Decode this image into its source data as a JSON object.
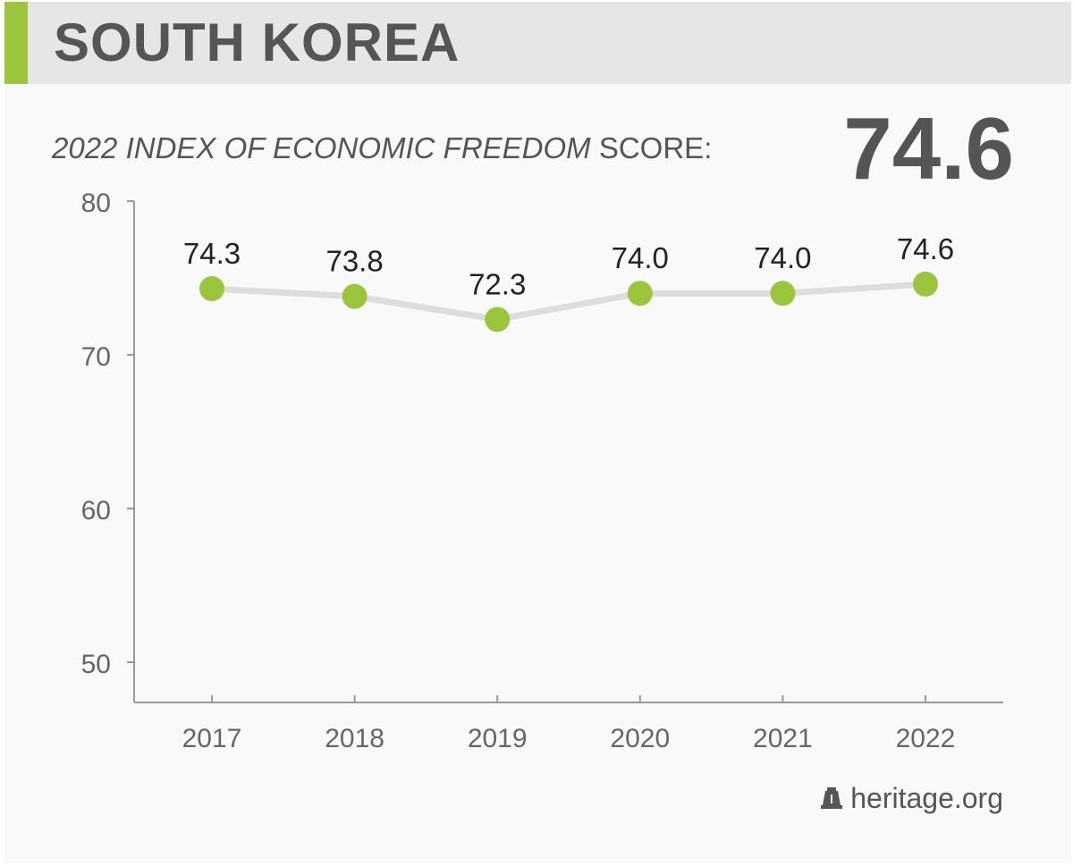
{
  "header": {
    "country": "SOUTH KOREA",
    "accent_color": "#9bc53d"
  },
  "subtitle": {
    "italic_part": "2022 INDEX OF ECONOMIC FREEDOM",
    "plain_part": " SCORE:"
  },
  "score": "74.6",
  "source": {
    "text": "heritage.org",
    "logo_icon": "liberty-bell-icon"
  },
  "chart_data": {
    "type": "line",
    "x": [
      "2017",
      "2018",
      "2019",
      "2020",
      "2021",
      "2022"
    ],
    "values": [
      74.3,
      73.8,
      72.3,
      74.0,
      74.0,
      74.6
    ],
    "data_labels": [
      "74.3",
      "73.8",
      "72.3",
      "74.0",
      "74.0",
      "74.6"
    ],
    "yticks": [
      50,
      60,
      70,
      80
    ],
    "ylim": [
      50,
      80
    ],
    "grid": false,
    "line_color": "#dddddd",
    "marker_color": "#9bc53d",
    "axis_color": "#999999"
  }
}
